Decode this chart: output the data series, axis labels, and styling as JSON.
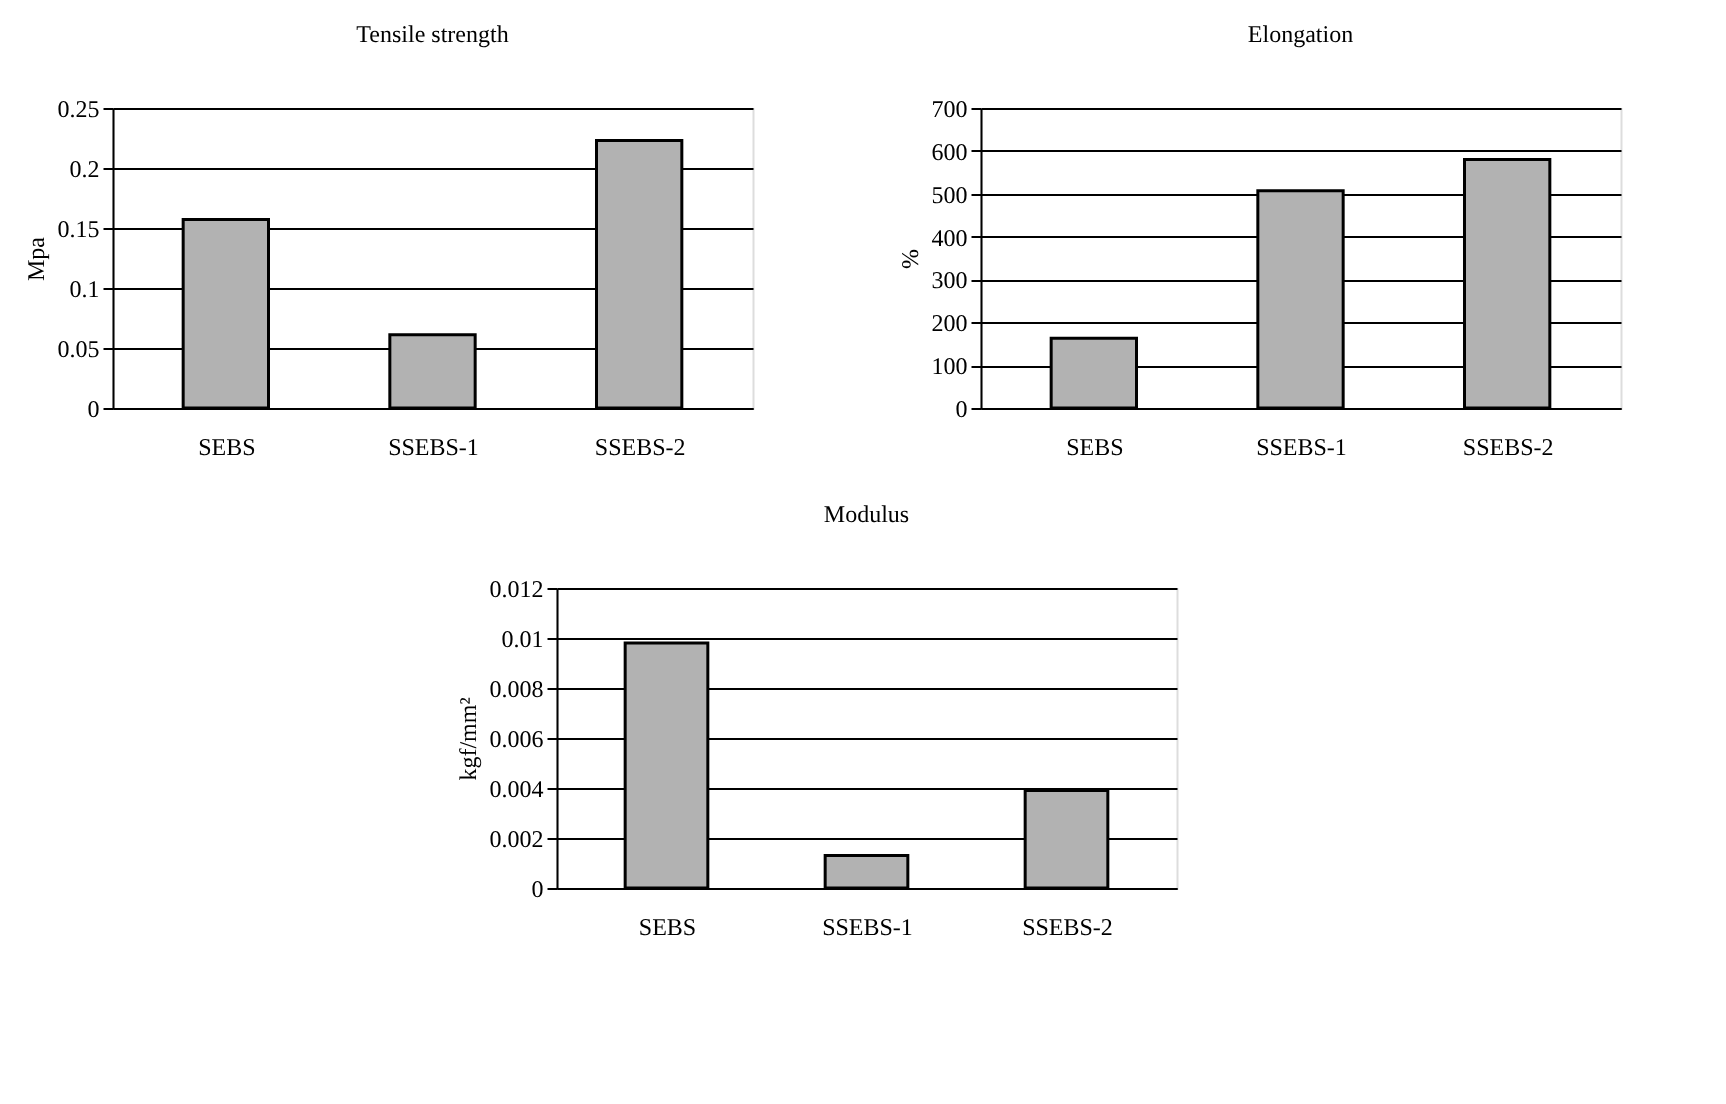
{
  "chart_data": [
    {
      "type": "bar",
      "title": "Tensile strength",
      "ylabel": "Mpa",
      "categories": [
        "SEBS",
        "SSEBS-1",
        "SSEBS-2"
      ],
      "values": [
        0.157,
        0.061,
        0.223
      ],
      "color": "#b2b2b2",
      "ylim": [
        0,
        0.25
      ],
      "yticks": [
        0,
        0.05,
        0.1,
        0.15,
        0.2,
        0.25
      ],
      "grid": "y"
    },
    {
      "type": "bar",
      "title": "Elongation",
      "ylabel": "%",
      "categories": [
        "SEBS",
        "SSEBS-1",
        "SSEBS-2"
      ],
      "values": [
        163,
        507,
        580
      ],
      "color": "#b2b2b2",
      "ylim": [
        0,
        700
      ],
      "yticks": [
        0,
        100,
        200,
        300,
        400,
        500,
        600,
        700
      ],
      "grid": "y"
    },
    {
      "type": "bar",
      "title": "Modulus",
      "ylabel": "kgf/mm²",
      "categories": [
        "SEBS",
        "SSEBS-1",
        "SSEBS-2"
      ],
      "values": [
        0.0098,
        0.0013,
        0.0039
      ],
      "color": "#b2b2b2",
      "ylim": [
        0,
        0.012
      ],
      "yticks": [
        0,
        0.002,
        0.004,
        0.006,
        0.008,
        0.01,
        0.012
      ],
      "grid": "y"
    }
  ]
}
